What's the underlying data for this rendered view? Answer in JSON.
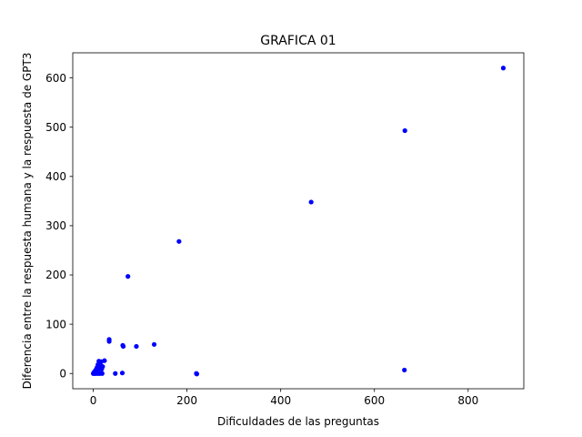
{
  "chart_data": {
    "type": "scatter",
    "title": "GRAFICA 01",
    "xlabel": "Dificuldades de las preguntas",
    "ylabel": "Diferencia entre la respuesta humana y la respuesta de GPT3",
    "xlim": [
      -43.75,
      918.75
    ],
    "ylim": [
      -31.0,
      651.0
    ],
    "xticks": [
      0,
      200,
      400,
      600,
      800
    ],
    "yticks": [
      0,
      100,
      200,
      300,
      400,
      500,
      600
    ],
    "grid": false,
    "marker_color": "#0000ff",
    "series": [
      {
        "points": [
          {
            "x": 875,
            "y": 620
          },
          {
            "x": 665,
            "y": 493
          },
          {
            "x": 465,
            "y": 348
          },
          {
            "x": 183,
            "y": 268
          },
          {
            "x": 74,
            "y": 197
          },
          {
            "x": 34,
            "y": 69
          },
          {
            "x": 34,
            "y": 65
          },
          {
            "x": 63,
            "y": 57
          },
          {
            "x": 64,
            "y": 55
          },
          {
            "x": 92,
            "y": 55
          },
          {
            "x": 130,
            "y": 59
          },
          {
            "x": 24,
            "y": 26
          },
          {
            "x": 12,
            "y": 25
          },
          {
            "x": 17,
            "y": 24
          },
          {
            "x": 10,
            "y": 18
          },
          {
            "x": 16,
            "y": 16
          },
          {
            "x": 20,
            "y": 14
          },
          {
            "x": 8,
            "y": 12
          },
          {
            "x": 12,
            "y": 10
          },
          {
            "x": 18,
            "y": 9
          },
          {
            "x": 6,
            "y": 8
          },
          {
            "x": 10,
            "y": 6
          },
          {
            "x": 4,
            "y": 5
          },
          {
            "x": 8,
            "y": 4
          },
          {
            "x": 2,
            "y": 3
          },
          {
            "x": 5,
            "y": 2
          },
          {
            "x": 1,
            "y": 1
          },
          {
            "x": 3,
            "y": 1
          },
          {
            "x": 0,
            "y": 0
          },
          {
            "x": 2,
            "y": 0
          },
          {
            "x": 4,
            "y": 0
          },
          {
            "x": 7,
            "y": 0
          },
          {
            "x": 11,
            "y": 0
          },
          {
            "x": 14,
            "y": 0
          },
          {
            "x": 19,
            "y": 0
          },
          {
            "x": 47,
            "y": 0
          },
          {
            "x": 62,
            "y": 1
          },
          {
            "x": 220,
            "y": 0
          },
          {
            "x": 221,
            "y": -1
          },
          {
            "x": 664,
            "y": 7
          }
        ]
      }
    ]
  }
}
